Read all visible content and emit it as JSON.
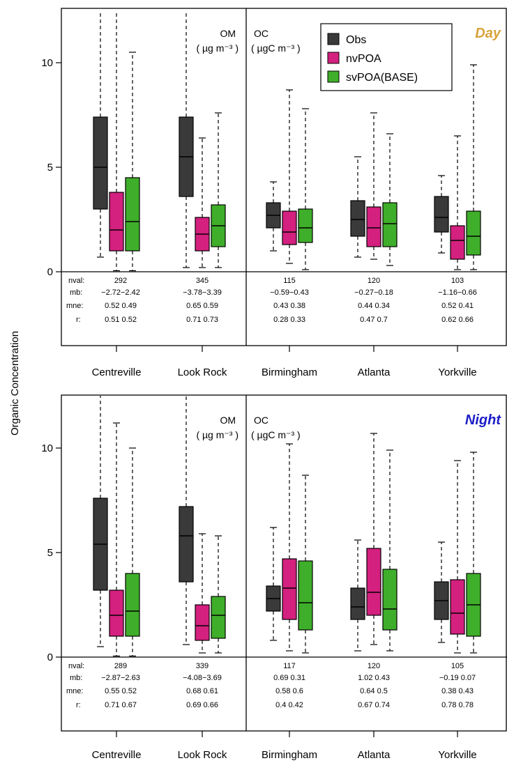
{
  "chart_data": {
    "type": "boxplot",
    "ylabel": "Organic Concentration",
    "ylim": [
      0,
      12
    ],
    "yticks": [
      "0",
      "5",
      "10"
    ],
    "sites": [
      "Centreville",
      "Look Rock",
      "Birmingham",
      "Atlanta",
      "Yorkville"
    ],
    "units": {
      "om_name": "OM",
      "om_unit": "( µg m⁻³ )",
      "oc_name": "OC",
      "oc_unit": "( µgC m⁻³ )"
    },
    "legend": {
      "position": "top-right",
      "entries": [
        {
          "name": "Obs",
          "color": "#3a3a3a"
        },
        {
          "name": "nvPOA",
          "color": "#d4207e"
        },
        {
          "name": "svPOA(BASE)",
          "color": "#3fae2a"
        }
      ]
    },
    "stat_labels": [
      "nval:",
      "mb:",
      "mne:",
      "r:"
    ],
    "panels": [
      {
        "period": "Day",
        "period_color": "#d9a23a",
        "boxes": [
          [
            {
              "whislo": 0.7,
              "q1": 3.0,
              "med": 5.0,
              "q3": 7.4,
              "whishi": 12.5
            },
            {
              "whislo": 0.05,
              "q1": 1.0,
              "med": 2.0,
              "q3": 3.8,
              "whishi": 12.5
            },
            {
              "whislo": 0.05,
              "q1": 1.0,
              "med": 2.4,
              "q3": 4.5,
              "whishi": 10.5
            }
          ],
          [
            {
              "whislo": 0.2,
              "q1": 3.6,
              "med": 5.5,
              "q3": 7.4,
              "whishi": 12.5
            },
            {
              "whislo": 0.2,
              "q1": 1.0,
              "med": 1.8,
              "q3": 2.6,
              "whishi": 6.4
            },
            {
              "whislo": 0.2,
              "q1": 1.2,
              "med": 2.2,
              "q3": 3.2,
              "whishi": 7.6
            }
          ],
          [
            {
              "whislo": 1.0,
              "q1": 2.1,
              "med": 2.7,
              "q3": 3.3,
              "whishi": 4.3
            },
            {
              "whislo": 0.4,
              "q1": 1.3,
              "med": 1.9,
              "q3": 2.9,
              "whishi": 8.7
            },
            {
              "whislo": 0.1,
              "q1": 1.4,
              "med": 2.1,
              "q3": 3.0,
              "whishi": 7.8
            }
          ],
          [
            {
              "whislo": 0.7,
              "q1": 1.7,
              "med": 2.5,
              "q3": 3.4,
              "whishi": 5.5
            },
            {
              "whislo": 0.6,
              "q1": 1.2,
              "med": 2.1,
              "q3": 3.1,
              "whishi": 7.6
            },
            {
              "whislo": 0.3,
              "q1": 1.2,
              "med": 2.3,
              "q3": 3.3,
              "whishi": 6.6
            }
          ],
          [
            {
              "whislo": 0.9,
              "q1": 1.9,
              "med": 2.6,
              "q3": 3.6,
              "whishi": 4.6
            },
            {
              "whislo": 0.1,
              "q1": 0.6,
              "med": 1.5,
              "q3": 2.2,
              "whishi": 6.5
            },
            {
              "whislo": 0.1,
              "q1": 0.8,
              "med": 1.7,
              "q3": 2.9,
              "whishi": 9.9
            }
          ]
        ],
        "stats": [
          {
            "nval": "292",
            "mb": "−2.72−2.42",
            "mne": "0.52  0.49",
            "r": "0.51  0.52"
          },
          {
            "nval": "345",
            "mb": "−3.78−3.39",
            "mne": "0.65  0.59",
            "r": "0.71  0.73"
          },
          {
            "nval": "115",
            "mb": "−0.59−0.43",
            "mne": "0.43  0.38",
            "r": "0.28  0.33"
          },
          {
            "nval": "120",
            "mb": "−0.27−0.18",
            "mne": "0.44  0.34",
            "r": "0.47  0.7"
          },
          {
            "nval": "103",
            "mb": "−1.16−0.66",
            "mne": "0.52  0.41",
            "r": "0.62  0.66"
          }
        ]
      },
      {
        "period": "Night",
        "period_color": "#1c1cc8",
        "boxes": [
          [
            {
              "whislo": 0.5,
              "q1": 3.2,
              "med": 5.4,
              "q3": 7.6,
              "whishi": 12.5
            },
            {
              "whislo": 0.05,
              "q1": 1.0,
              "med": 2.0,
              "q3": 3.2,
              "whishi": 11.2
            },
            {
              "whislo": 0.05,
              "q1": 1.0,
              "med": 2.2,
              "q3": 4.0,
              "whishi": 10.0
            }
          ],
          [
            {
              "whislo": 0.6,
              "q1": 3.6,
              "med": 5.8,
              "q3": 7.2,
              "whishi": 12.5
            },
            {
              "whislo": 0.2,
              "q1": 0.8,
              "med": 1.5,
              "q3": 2.5,
              "whishi": 5.9
            },
            {
              "whislo": 0.2,
              "q1": 0.9,
              "med": 2.0,
              "q3": 2.9,
              "whishi": 5.8
            }
          ],
          [
            {
              "whislo": 0.8,
              "q1": 2.2,
              "med": 2.8,
              "q3": 3.4,
              "whishi": 6.2
            },
            {
              "whislo": 0.3,
              "q1": 1.8,
              "med": 3.3,
              "q3": 4.7,
              "whishi": 10.2
            },
            {
              "whislo": 0.2,
              "q1": 1.3,
              "med": 2.6,
              "q3": 4.6,
              "whishi": 8.7
            }
          ],
          [
            {
              "whislo": 0.3,
              "q1": 1.8,
              "med": 2.4,
              "q3": 3.3,
              "whishi": 5.6
            },
            {
              "whislo": 0.6,
              "q1": 2.0,
              "med": 3.1,
              "q3": 5.2,
              "whishi": 10.7
            },
            {
              "whislo": 0.3,
              "q1": 1.3,
              "med": 2.3,
              "q3": 4.2,
              "whishi": 9.9
            }
          ],
          [
            {
              "whislo": 0.7,
              "q1": 1.8,
              "med": 2.7,
              "q3": 3.6,
              "whishi": 5.5
            },
            {
              "whislo": 0.2,
              "q1": 1.1,
              "med": 2.1,
              "q3": 3.7,
              "whishi": 9.4
            },
            {
              "whislo": 0.2,
              "q1": 1.0,
              "med": 2.5,
              "q3": 4.0,
              "whishi": 9.8
            }
          ]
        ],
        "stats": [
          {
            "nval": "289",
            "mb": "−2.87−2.63",
            "mne": "0.55  0.52",
            "r": "0.71  0.67"
          },
          {
            "nval": "339",
            "mb": "−4.08−3.69",
            "mne": "0.68  0.61",
            "r": "0.69  0.66"
          },
          {
            "nval": "117",
            "mb": "0.69  0.31",
            "mne": "0.58  0.6",
            "r": "0.4  0.42"
          },
          {
            "nval": "120",
            "mb": "1.02  0.43",
            "mne": "0.64  0.5",
            "r": "0.67  0.74"
          },
          {
            "nval": "105",
            "mb": "−0.19 0.07",
            "mne": "0.38  0.43",
            "r": "0.78  0.78"
          }
        ]
      }
    ]
  }
}
